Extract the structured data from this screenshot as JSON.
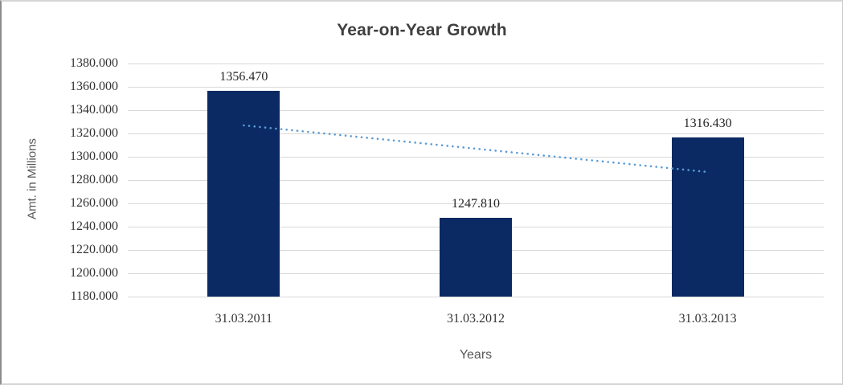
{
  "chart_data": {
    "type": "bar",
    "title": "Year-on-Year Growth",
    "xlabel": "Years",
    "ylabel": "Amt. in Millions",
    "categories": [
      "31.03.2011",
      "31.03.2012",
      "31.03.2013"
    ],
    "values": [
      1356.47,
      1247.81,
      1316.43
    ],
    "data_labels": [
      "1356.470",
      "1247.810",
      "1316.430"
    ],
    "y_ticks": [
      {
        "value": 1380,
        "label": "1380.000"
      },
      {
        "value": 1360,
        "label": "1360.000"
      },
      {
        "value": 1340,
        "label": "1340.000"
      },
      {
        "value": 1320,
        "label": "1320.000"
      },
      {
        "value": 1300,
        "label": "1300.000"
      },
      {
        "value": 1280,
        "label": "1280.000"
      },
      {
        "value": 1260,
        "label": "1260.000"
      },
      {
        "value": 1240,
        "label": "1240.000"
      },
      {
        "value": 1220,
        "label": "1220.000"
      },
      {
        "value": 1200,
        "label": "1200.000"
      },
      {
        "value": 1180,
        "label": "1180.000"
      }
    ],
    "ylim": [
      1180,
      1380
    ],
    "y_step": 20,
    "grid": true,
    "legend": "none",
    "colors": {
      "bar": "#0b2a63",
      "trendline": "#5b9bd5",
      "gridline": "#d9d9d9",
      "title_text": "#3f3f3f",
      "tick_text": "#333333",
      "axis_title_text": "#595959"
    },
    "trendline": {
      "kind": "linear-dotted",
      "start_value": 1326.9,
      "end_value": 1286.9
    }
  }
}
